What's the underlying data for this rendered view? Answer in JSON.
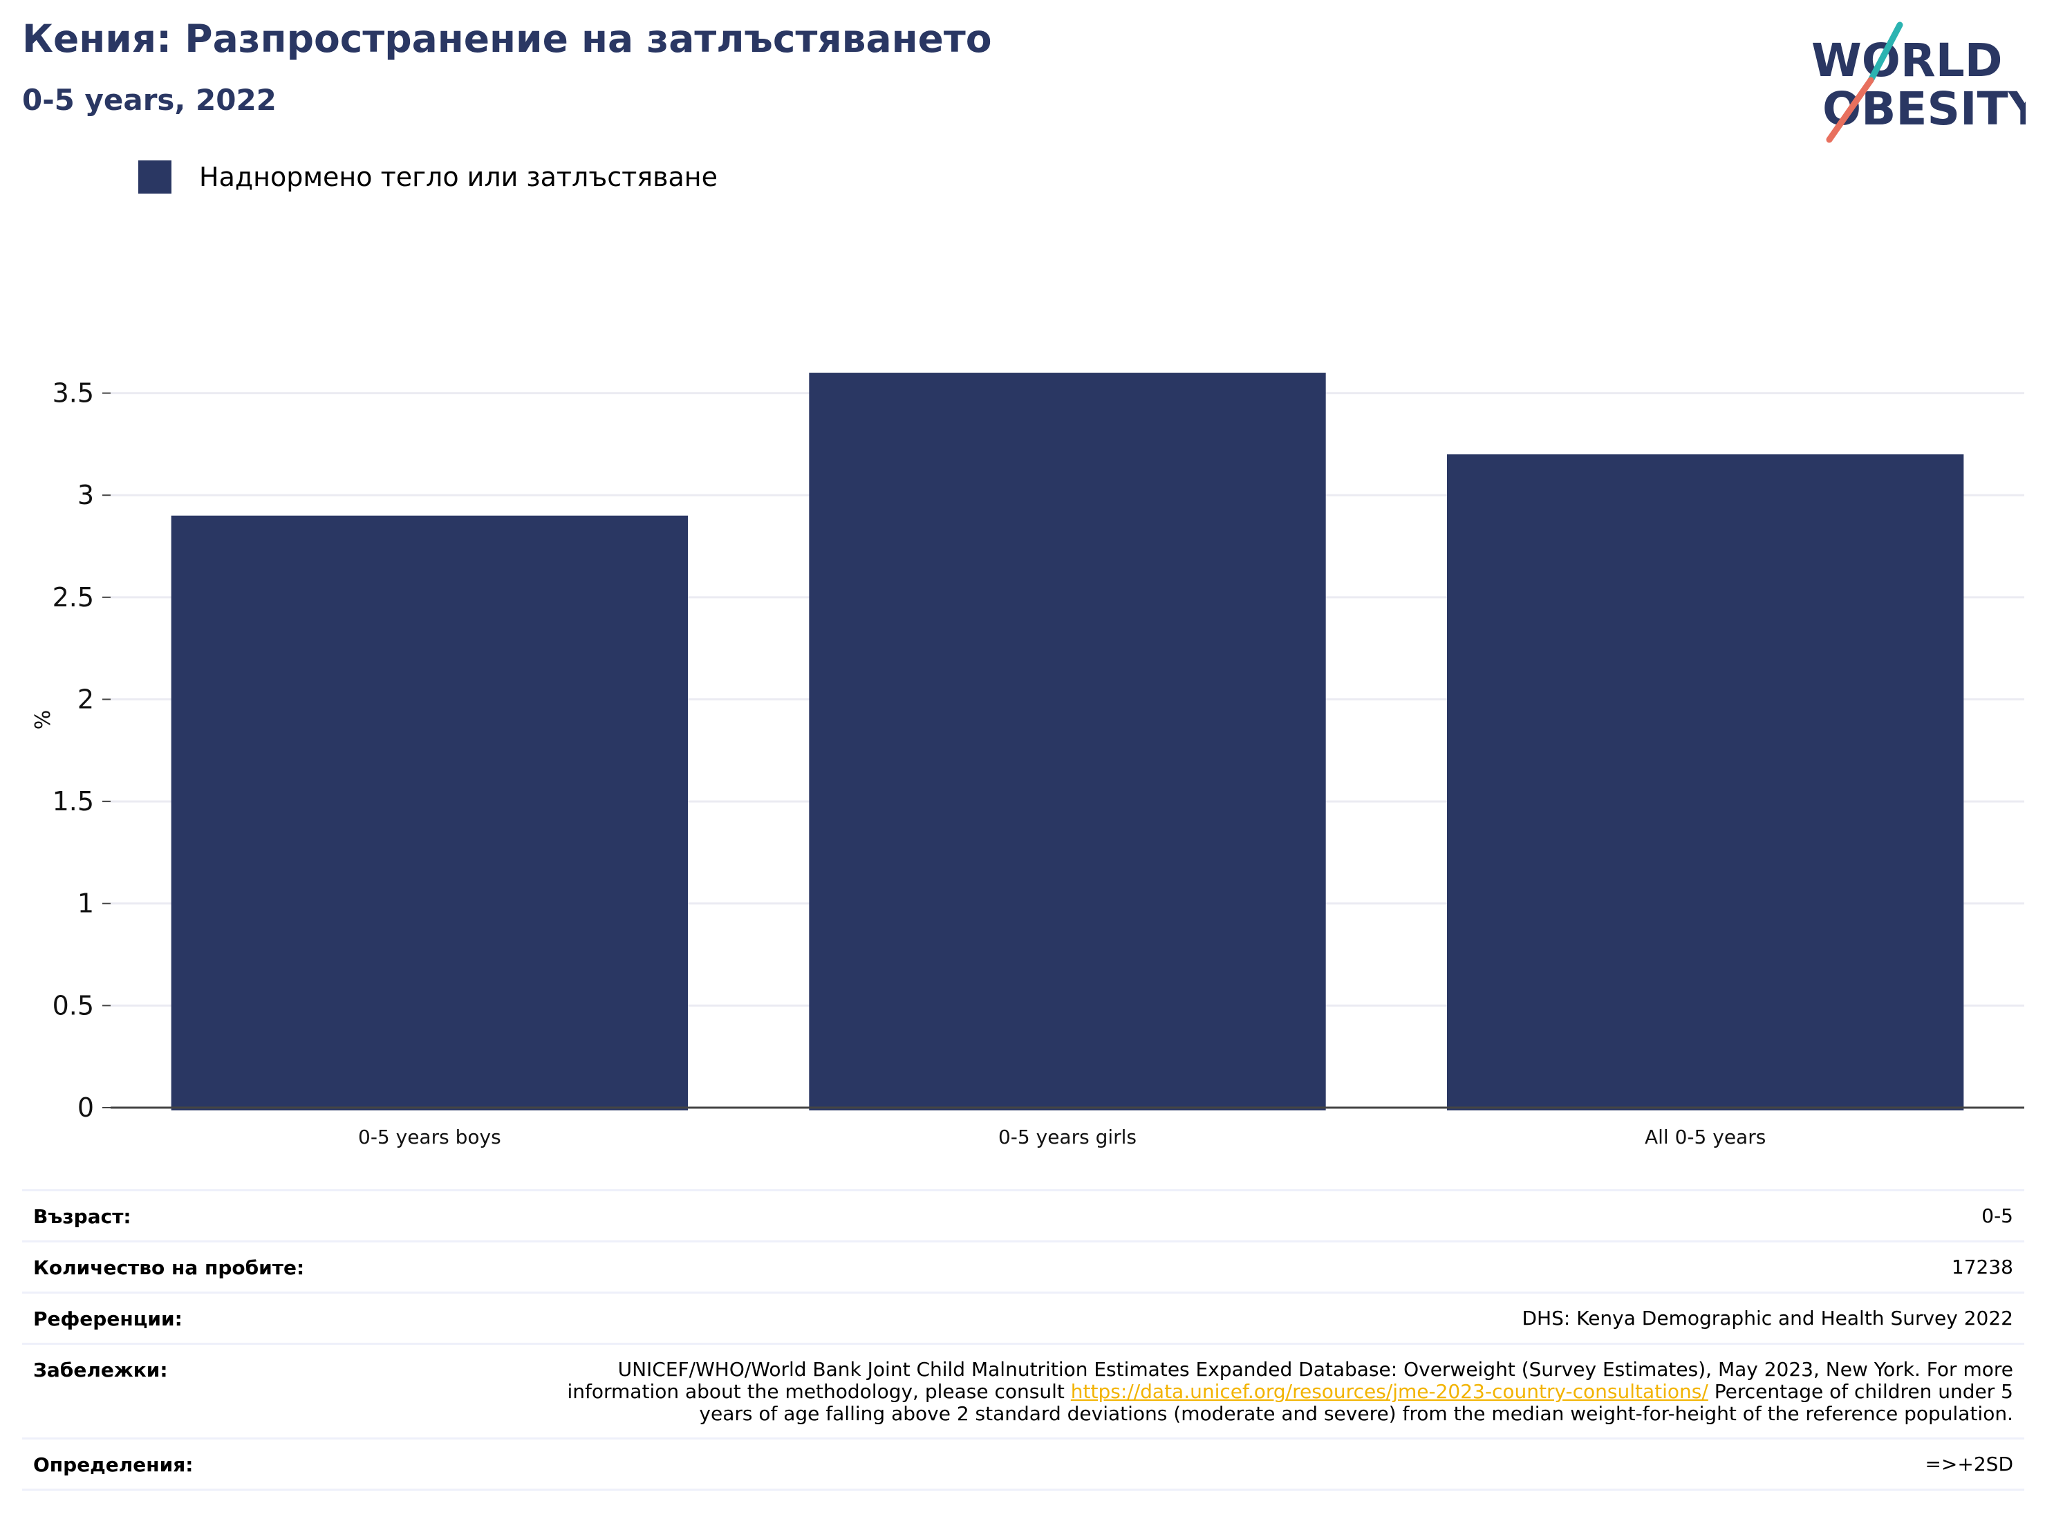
{
  "header": {
    "title": "Кения: Разпространение на затлъстяването",
    "subtitle": "0-5 years, 2022"
  },
  "logo": {
    "line1": "WORLD",
    "line2": "OBESITY",
    "colors": {
      "text": "#2a3763",
      "teal": "#2bb3b1",
      "coral": "#e8705e"
    }
  },
  "legend": {
    "label": "Наднормено тегло или затлъстяване",
    "color": "#2a3763"
  },
  "chart_data": {
    "type": "bar",
    "categories": [
      "0-5 years boys",
      "0-5 years girls",
      "All 0-5 years"
    ],
    "series": [
      {
        "name": "Наднормено тегло или затлъстяване",
        "values": [
          2.9,
          3.6,
          3.2
        ],
        "color": "#2a3763"
      }
    ],
    "ylabel": "%",
    "ylim": [
      0,
      3.8
    ],
    "yticks": [
      0,
      0.5,
      1,
      1.5,
      2,
      2.5,
      3,
      3.5
    ],
    "ytick_labels": [
      "0",
      "0.5",
      "1",
      "1.5",
      "2",
      "2.5",
      "3",
      "3.5"
    ],
    "grid": true,
    "legend_position": "top-left"
  },
  "details": {
    "age": {
      "label": "Възраст:",
      "value": "0-5"
    },
    "sample": {
      "label": "Количество на пробите:",
      "value": "17238"
    },
    "references": {
      "label": "Референции:",
      "value": "DHS: Kenya Demographic and Health Survey 2022"
    },
    "notes": {
      "label": "Забележки:",
      "text_before": "UNICEF/WHO/World Bank Joint Child Malnutrition Estimates Expanded Database: Overweight (Survey Estimates), May 2023, New York. For more information about the methodology, please consult ",
      "link": "https://data.unicef.org/resources/jme-2023-country-consultations/",
      "text_after": " Percentage of children under 5 years of age falling above 2 standard deviations (moderate and severe) from the median weight-for-height of the reference population."
    },
    "definitions": {
      "label": "Определения:",
      "value": "=>+2SD"
    }
  }
}
